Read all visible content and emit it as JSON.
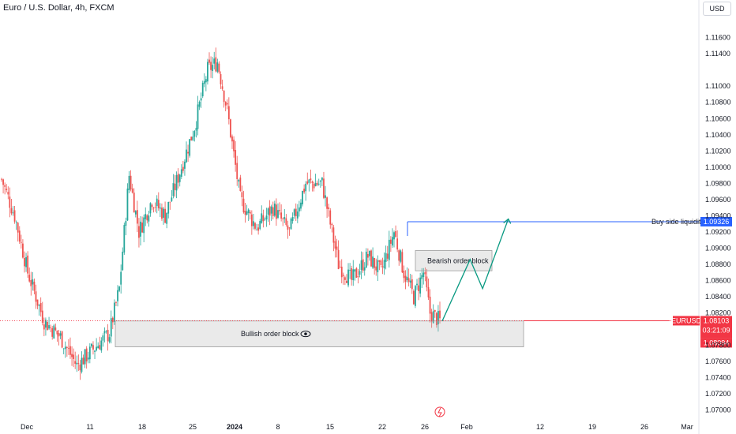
{
  "header": {
    "title": "Euro / U.S. Dollar, 4h, FXCM"
  },
  "currency_button": "USD",
  "colors": {
    "up": "#26a69a",
    "down": "#ef5350",
    "blue": "#2962ff",
    "red_tag": "#f23645",
    "path": "#089981"
  },
  "icons": {
    "eye": "eye-icon",
    "lightning": "lightning-icon"
  },
  "chart_data": {
    "type": "candlestick",
    "symbol": "EURUSD",
    "ylim": [
      1.0685,
      1.1185
    ],
    "y_ticks": [
      "1.11600",
      "1.11400",
      "1.11000",
      "1.10800",
      "1.10600",
      "1.10400",
      "1.10200",
      "1.10000",
      "1.09800",
      "1.09600",
      "1.09400",
      "1.09200",
      "1.09000",
      "1.08800",
      "1.08600",
      "1.08400",
      "1.08200",
      "1.07800",
      "1.07600",
      "1.07400",
      "1.07200",
      "1.07000"
    ],
    "x_ticks": [
      "Dec",
      "11",
      "18",
      "25",
      "2024",
      "8",
      "15",
      "22",
      "26",
      "Feb",
      "12",
      "19",
      "26",
      "Mar"
    ],
    "anchors": [
      {
        "i": 0,
        "v": 1.0985
      },
      {
        "i": 8,
        "v": 1.094
      },
      {
        "i": 16,
        "v": 1.087
      },
      {
        "i": 26,
        "v": 1.081
      },
      {
        "i": 36,
        "v": 1.079
      },
      {
        "i": 46,
        "v": 1.0755
      },
      {
        "i": 56,
        "v": 1.0775
      },
      {
        "i": 66,
        "v": 1.0795
      },
      {
        "i": 72,
        "v": 1.085
      },
      {
        "i": 78,
        "v": 1.099
      },
      {
        "i": 84,
        "v": 1.092
      },
      {
        "i": 92,
        "v": 1.096
      },
      {
        "i": 100,
        "v": 1.094
      },
      {
        "i": 110,
        "v": 1.1
      },
      {
        "i": 118,
        "v": 1.105
      },
      {
        "i": 126,
        "v": 1.112
      },
      {
        "i": 132,
        "v": 1.113
      },
      {
        "i": 138,
        "v": 1.107
      },
      {
        "i": 146,
        "v": 1.096
      },
      {
        "i": 156,
        "v": 1.0925
      },
      {
        "i": 166,
        "v": 1.095
      },
      {
        "i": 176,
        "v": 1.092
      },
      {
        "i": 186,
        "v": 1.098
      },
      {
        "i": 196,
        "v": 1.098
      },
      {
        "i": 206,
        "v": 1.088
      },
      {
        "i": 214,
        "v": 1.086
      },
      {
        "i": 224,
        "v": 1.089
      },
      {
        "i": 232,
        "v": 1.087
      },
      {
        "i": 240,
        "v": 1.092
      },
      {
        "i": 246,
        "v": 1.087
      },
      {
        "i": 252,
        "v": 1.084
      },
      {
        "i": 258,
        "v": 1.087
      },
      {
        "i": 262,
        "v": 1.082
      },
      {
        "i": 268,
        "v": 1.081
      }
    ],
    "last_price": "1.08103",
    "countdown": "03:21:09",
    "bid_price": "1.08094",
    "buy_side_price": "1.09326",
    "buy_side_value": 1.09326,
    "last_value": 1.08103,
    "annotations": {
      "buy_side_liquidity": "Buy side liquidity",
      "bearish_order_block": "Bearish order block",
      "bullish_order_block": "Bullish order block"
    },
    "bullish_block": [
      1.0778,
      1.081
    ],
    "bearish_block": [
      1.0872,
      1.0897
    ],
    "projection": [
      {
        "t": 0.0,
        "v": 1.081
      },
      {
        "t": 0.38,
        "v": 1.0886
      },
      {
        "t": 0.55,
        "v": 1.085
      },
      {
        "t": 0.9,
        "v": 1.0936
      }
    ]
  }
}
